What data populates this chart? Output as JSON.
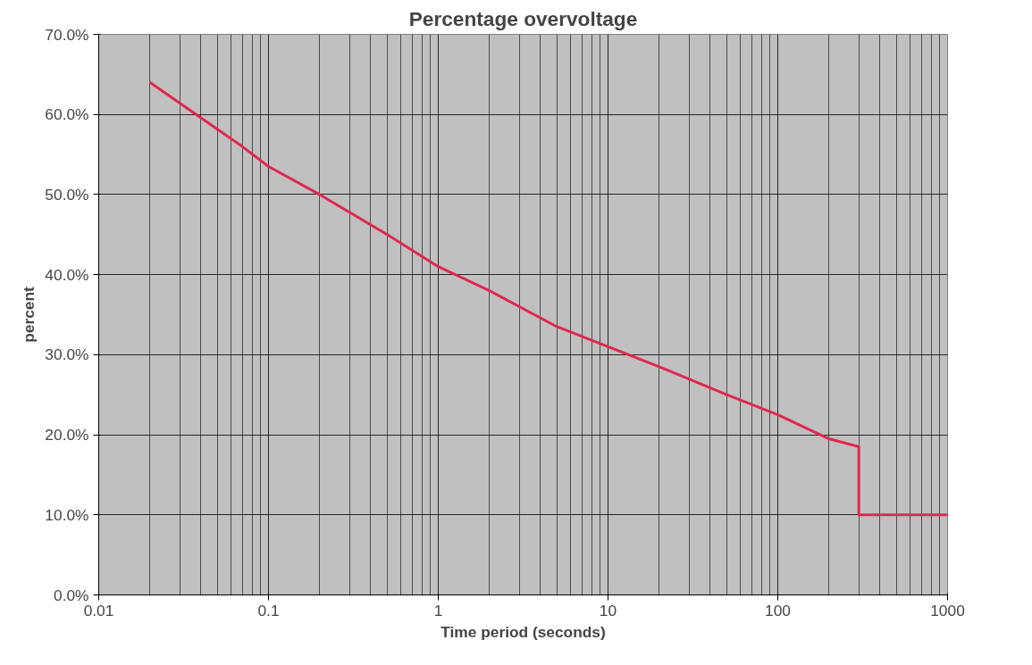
{
  "chart_data": {
    "type": "line",
    "title": "Percentage overvoltage",
    "xlabel": "Time period (seconds)",
    "ylabel": "percent",
    "log": "x",
    "grid": true,
    "marker": "none",
    "line_style": "solid",
    "xlim": [
      0.01,
      1000
    ],
    "xticks": [
      0.01,
      0.1,
      1,
      10,
      100,
      1000
    ],
    "ylim": [
      0,
      70
    ],
    "yticks": [
      {
        "value": 0,
        "label": "0.0%"
      },
      {
        "value": 10,
        "label": "10.0%"
      },
      {
        "value": 20,
        "label": "20.0%"
      },
      {
        "value": 30,
        "label": "30.0%"
      },
      {
        "value": 40,
        "label": "40.0%"
      },
      {
        "value": 50,
        "label": "50.0%"
      },
      {
        "value": 60,
        "label": "60.0%"
      },
      {
        "value": 70,
        "label": "70.0%"
      }
    ],
    "series": [
      {
        "color": "#e0284f",
        "x": [
          0.02,
          0.07,
          0.1,
          0.2,
          0.5,
          1,
          2,
          5,
          10,
          20,
          50,
          100,
          200,
          300,
          300,
          1000
        ],
        "values": [
          64,
          56,
          53.5,
          50,
          45,
          41,
          38,
          33.5,
          31,
          28.5,
          25,
          22.5,
          19.5,
          18.5,
          10,
          10
        ]
      }
    ]
  }
}
